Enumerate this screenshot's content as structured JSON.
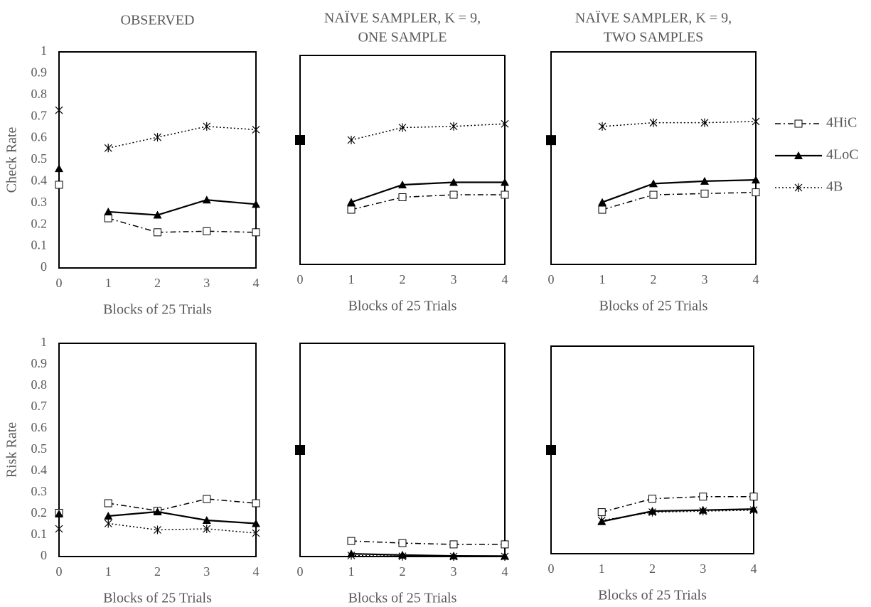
{
  "chart_data": [
    {
      "type": "line",
      "title": "OBSERVED",
      "ylabel": "Check Rate",
      "xlabel": "Blocks of 25 Trials",
      "x": [
        1,
        2,
        3,
        4
      ],
      "xlim": [
        0,
        4
      ],
      "xticks": [
        0,
        1,
        2,
        3,
        4
      ],
      "ylim": [
        0,
        1
      ],
      "yticks": [
        0,
        0.1,
        0.2,
        0.3,
        0.4,
        0.5,
        0.6,
        0.7,
        0.8,
        0.9,
        1
      ],
      "series": [
        {
          "name": "4HiC",
          "color": "#000000",
          "dash": "dashdot",
          "marker": "square",
          "start": 0.385,
          "values": [
            0.23,
            0.165,
            0.17,
            0.165
          ]
        },
        {
          "name": "4LoC",
          "color": "#000000",
          "dash": "solid",
          "marker": "triangle",
          "start": 0.46,
          "values": [
            0.26,
            0.245,
            0.315,
            0.295
          ]
        },
        {
          "name": "4B",
          "color": "#000000",
          "dash": "dotted",
          "marker": "asterisk",
          "start": 0.73,
          "values": [
            0.555,
            0.605,
            0.655,
            0.64
          ]
        }
      ]
    },
    {
      "type": "line",
      "title": "NAÏVE SAMPLER, K = 9,",
      "subtitle": "ONE SAMPLE",
      "xlabel": "Blocks of 25 Trials",
      "x": [
        1,
        2,
        3,
        4
      ],
      "xlim": [
        0,
        4
      ],
      "xticks": [
        0,
        1,
        2,
        3,
        4
      ],
      "ylim": [
        0,
        0.84
      ],
      "start": 0.5,
      "series": [
        {
          "name": "4HiC",
          "color": "#000000",
          "dash": "dashdot",
          "marker": "square",
          "values": [
            0.22,
            0.27,
            0.28,
            0.28
          ]
        },
        {
          "name": "4LoC",
          "color": "#000000",
          "dash": "solid",
          "marker": "triangle",
          "values": [
            0.25,
            0.32,
            0.33,
            0.33
          ]
        },
        {
          "name": "4B",
          "color": "#000000",
          "dash": "dotted",
          "marker": "asterisk",
          "values": [
            0.5,
            0.55,
            0.555,
            0.565
          ]
        }
      ]
    },
    {
      "type": "line",
      "title": "NAÏVE SAMPLER, K = 9,",
      "subtitle": "TWO SAMPLES",
      "xlabel": "Blocks of 25 Trials",
      "x": [
        1,
        2,
        3,
        4
      ],
      "xlim": [
        0,
        4
      ],
      "xticks": [
        0,
        1,
        2,
        3,
        4
      ],
      "ylim": [
        0,
        0.855
      ],
      "start": 0.5,
      "series": [
        {
          "name": "4HiC",
          "color": "#000000",
          "dash": "dashdot",
          "marker": "square",
          "values": [
            0.22,
            0.28,
            0.285,
            0.29
          ]
        },
        {
          "name": "4LoC",
          "color": "#000000",
          "dash": "solid",
          "marker": "triangle",
          "values": [
            0.25,
            0.325,
            0.335,
            0.34
          ]
        },
        {
          "name": "4B",
          "color": "#000000",
          "dash": "dotted",
          "marker": "asterisk",
          "values": [
            0.555,
            0.57,
            0.57,
            0.575
          ]
        }
      ]
    },
    {
      "type": "line",
      "ylabel": "Risk  Rate",
      "xlabel": "Blocks of 25 Trials",
      "x": [
        1,
        2,
        3,
        4
      ],
      "xlim": [
        0,
        4
      ],
      "xticks": [
        0,
        1,
        2,
        3,
        4
      ],
      "ylim": [
        0,
        1
      ],
      "yticks": [
        0,
        0.1,
        0.2,
        0.3,
        0.4,
        0.5,
        0.6,
        0.7,
        0.8,
        0.9,
        1
      ],
      "series": [
        {
          "name": "4HiC",
          "color": "#000000",
          "dash": "dashdot",
          "marker": "square",
          "start": 0.205,
          "values": [
            0.25,
            0.215,
            0.27,
            0.25
          ]
        },
        {
          "name": "4LoC",
          "color": "#000000",
          "dash": "solid",
          "marker": "triangle",
          "start": 0.2,
          "values": [
            0.19,
            0.21,
            0.17,
            0.155
          ]
        },
        {
          "name": "4B",
          "color": "#000000",
          "dash": "dotted",
          "marker": "asterisk",
          "start": 0.13,
          "values": [
            0.155,
            0.125,
            0.13,
            0.11
          ]
        }
      ]
    },
    {
      "type": "line",
      "xlabel": "Blocks of 25 Trials",
      "x": [
        1,
        2,
        3,
        4
      ],
      "xlim": [
        0,
        4
      ],
      "xticks": [
        0,
        1,
        2,
        3,
        4
      ],
      "ylim": [
        0,
        1
      ],
      "start": 0.5,
      "series": [
        {
          "name": "4HiC",
          "color": "#000000",
          "dash": "dashdot",
          "marker": "square",
          "values": [
            0.073,
            0.063,
            0.057,
            0.057
          ]
        },
        {
          "name": "4LoC",
          "color": "#000000",
          "dash": "solid",
          "marker": "triangle",
          "values": [
            0.013,
            0.007,
            0.003,
            0.002
          ]
        },
        {
          "name": "4B",
          "color": "#000000",
          "dash": "dotted",
          "marker": "asterisk",
          "values": [
            0.005,
            0.001,
            0,
            0
          ]
        }
      ]
    },
    {
      "type": "line",
      "xlabel": "Blocks of 25 Trials",
      "x": [
        1,
        2,
        3,
        4
      ],
      "xlim": [
        0,
        4
      ],
      "xticks": [
        0,
        1,
        2,
        3,
        4
      ],
      "ylim": [
        0,
        1
      ],
      "start": 0.5,
      "series": [
        {
          "name": "4HiC",
          "color": "#000000",
          "dash": "dashdot",
          "marker": "square",
          "values": [
            0.2,
            0.265,
            0.275,
            0.275
          ]
        },
        {
          "name": "4LoC",
          "color": "#000000",
          "dash": "solid",
          "marker": "triangle",
          "values": [
            0.155,
            0.205,
            0.21,
            0.215
          ]
        },
        {
          "name": "4B",
          "color": "#000000",
          "dash": "dotted",
          "marker": "asterisk",
          "values": [
            0.16,
            0.2,
            0.205,
            0.21
          ]
        }
      ]
    }
  ]
}
